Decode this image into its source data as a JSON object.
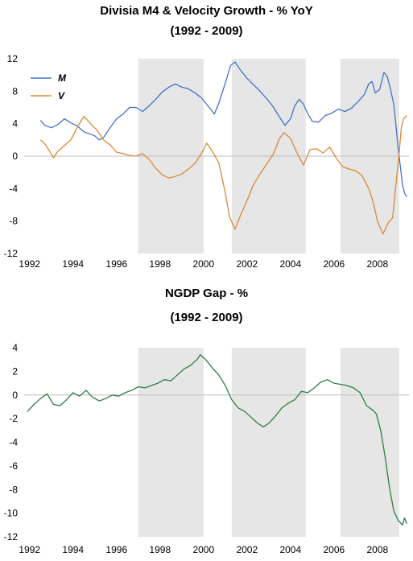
{
  "chart_data": [
    {
      "type": "line",
      "title": "Divisia M4 & Velocity Growth - % YoY",
      "subtitle": "(1992 - 2009)",
      "xlim": [
        1991.75,
        2009.45
      ],
      "ylim": [
        -12,
        12
      ],
      "xticks": [
        1992,
        1994,
        1996,
        1998,
        2000,
        2002,
        2004,
        2006,
        2008
      ],
      "yticks": [
        12,
        8,
        4,
        0,
        -4,
        -8,
        -12
      ],
      "legend": "top-left",
      "shaded_periods": [
        [
          1997.0,
          2000.0
        ],
        [
          2001.3,
          2004.7
        ],
        [
          2006.3,
          2009.0
        ]
      ],
      "shade_color": "#e6e6e6",
      "zero_line_color": "#bfbfbf",
      "series": [
        {
          "name": "M",
          "color": "#4472c4",
          "points": [
            [
              1992.5,
              4.4
            ],
            [
              1992.7,
              3.8
            ],
            [
              1993.0,
              3.5
            ],
            [
              1993.3,
              3.9
            ],
            [
              1993.6,
              4.6
            ],
            [
              1993.9,
              4.1
            ],
            [
              1994.2,
              3.7
            ],
            [
              1994.5,
              3.0
            ],
            [
              1994.8,
              2.7
            ],
            [
              1995.0,
              2.5
            ],
            [
              1995.2,
              2.0
            ],
            [
              1995.4,
              2.3
            ],
            [
              1995.7,
              3.5
            ],
            [
              1996.0,
              4.6
            ],
            [
              1996.3,
              5.2
            ],
            [
              1996.6,
              6.0
            ],
            [
              1996.9,
              6.0
            ],
            [
              1997.2,
              5.5
            ],
            [
              1997.5,
              6.2
            ],
            [
              1997.8,
              7.0
            ],
            [
              1998.1,
              7.9
            ],
            [
              1998.4,
              8.5
            ],
            [
              1998.7,
              8.9
            ],
            [
              1999.0,
              8.5
            ],
            [
              1999.3,
              8.3
            ],
            [
              1999.6,
              7.8
            ],
            [
              1999.9,
              7.2
            ],
            [
              2000.2,
              6.2
            ],
            [
              2000.5,
              5.2
            ],
            [
              2000.7,
              6.5
            ],
            [
              2001.0,
              9.0
            ],
            [
              2001.25,
              11.2
            ],
            [
              2001.45,
              11.6
            ],
            [
              2001.7,
              10.6
            ],
            [
              2002.0,
              9.6
            ],
            [
              2002.3,
              8.8
            ],
            [
              2002.6,
              8.0
            ],
            [
              2002.9,
              7.1
            ],
            [
              2003.2,
              6.1
            ],
            [
              2003.5,
              4.8
            ],
            [
              2003.75,
              3.8
            ],
            [
              2004.0,
              4.6
            ],
            [
              2004.2,
              6.2
            ],
            [
              2004.4,
              7.0
            ],
            [
              2004.6,
              6.4
            ],
            [
              2004.8,
              5.2
            ],
            [
              2005.0,
              4.3
            ],
            [
              2005.3,
              4.2
            ],
            [
              2005.6,
              5.0
            ],
            [
              2005.9,
              5.3
            ],
            [
              2006.2,
              5.8
            ],
            [
              2006.5,
              5.5
            ],
            [
              2006.8,
              5.9
            ],
            [
              2007.1,
              6.7
            ],
            [
              2007.4,
              7.6
            ],
            [
              2007.6,
              8.9
            ],
            [
              2007.75,
              9.2
            ],
            [
              2007.9,
              7.8
            ],
            [
              2008.1,
              8.2
            ],
            [
              2008.3,
              10.3
            ],
            [
              2008.45,
              9.8
            ],
            [
              2008.6,
              8.3
            ],
            [
              2008.75,
              6.4
            ],
            [
              2008.85,
              3.8
            ],
            [
              2008.95,
              1.0
            ],
            [
              2009.05,
              -1.2
            ],
            [
              2009.15,
              -3.5
            ],
            [
              2009.25,
              -4.6
            ],
            [
              2009.35,
              -5.0
            ]
          ]
        },
        {
          "name": "V",
          "color": "#d98a3a",
          "points": [
            [
              1992.5,
              2.0
            ],
            [
              1992.7,
              1.5
            ],
            [
              1992.9,
              0.7
            ],
            [
              1993.1,
              -0.2
            ],
            [
              1993.3,
              0.6
            ],
            [
              1993.6,
              1.3
            ],
            [
              1993.9,
              2.0
            ],
            [
              1994.2,
              3.6
            ],
            [
              1994.5,
              4.9
            ],
            [
              1994.8,
              4.0
            ],
            [
              1995.1,
              3.2
            ],
            [
              1995.4,
              2.0
            ],
            [
              1995.7,
              1.4
            ],
            [
              1996.0,
              0.5
            ],
            [
              1996.3,
              0.3
            ],
            [
              1996.6,
              0.1
            ],
            [
              1996.9,
              0.0
            ],
            [
              1997.2,
              0.3
            ],
            [
              1997.5,
              -0.4
            ],
            [
              1997.8,
              -1.5
            ],
            [
              1998.1,
              -2.3
            ],
            [
              1998.4,
              -2.7
            ],
            [
              1998.7,
              -2.5
            ],
            [
              1999.0,
              -2.2
            ],
            [
              1999.3,
              -1.6
            ],
            [
              1999.6,
              -0.9
            ],
            [
              1999.9,
              0.3
            ],
            [
              2000.15,
              1.6
            ],
            [
              2000.4,
              0.6
            ],
            [
              2000.7,
              -0.8
            ],
            [
              2001.0,
              -4.5
            ],
            [
              2001.2,
              -7.5
            ],
            [
              2001.45,
              -9.0
            ],
            [
              2001.7,
              -7.3
            ],
            [
              2002.0,
              -5.5
            ],
            [
              2002.3,
              -3.5
            ],
            [
              2002.6,
              -2.2
            ],
            [
              2002.9,
              -1.0
            ],
            [
              2003.2,
              0.2
            ],
            [
              2003.5,
              2.2
            ],
            [
              2003.7,
              2.9
            ],
            [
              2004.0,
              2.2
            ],
            [
              2004.3,
              0.4
            ],
            [
              2004.6,
              -1.1
            ],
            [
              2004.9,
              0.8
            ],
            [
              2005.2,
              0.9
            ],
            [
              2005.5,
              0.4
            ],
            [
              2005.8,
              1.1
            ],
            [
              2006.1,
              -0.2
            ],
            [
              2006.4,
              -1.3
            ],
            [
              2006.7,
              -1.6
            ],
            [
              2007.0,
              -1.8
            ],
            [
              2007.3,
              -2.4
            ],
            [
              2007.6,
              -4.0
            ],
            [
              2007.8,
              -5.6
            ],
            [
              2008.0,
              -8.0
            ],
            [
              2008.25,
              -9.6
            ],
            [
              2008.5,
              -8.2
            ],
            [
              2008.7,
              -7.6
            ],
            [
              2008.85,
              -3.5
            ],
            [
              2009.0,
              0.4
            ],
            [
              2009.1,
              3.5
            ],
            [
              2009.2,
              4.6
            ],
            [
              2009.35,
              5.0
            ]
          ]
        }
      ]
    },
    {
      "type": "line",
      "title": "NGDP Gap - %",
      "subtitle": "(1992 - 2009)",
      "xlim": [
        1991.75,
        2009.45
      ],
      "ylim": [
        -12,
        4
      ],
      "xticks": [
        1992,
        1994,
        1996,
        1998,
        2000,
        2002,
        2004,
        2006,
        2008
      ],
      "yticks": [
        4,
        2,
        0,
        -2,
        -4,
        -6,
        -8,
        -10,
        -12
      ],
      "legend": "none",
      "shaded_periods": [
        [
          1997.0,
          2000.0
        ],
        [
          2001.3,
          2004.7
        ],
        [
          2006.3,
          2009.0
        ]
      ],
      "shade_color": "#e6e6e6",
      "zero_line_color": "#bfbfbf",
      "series": [
        {
          "color": "#2e7d45",
          "points": [
            [
              1991.9,
              -1.4
            ],
            [
              1992.2,
              -0.8
            ],
            [
              1992.5,
              -0.3
            ],
            [
              1992.8,
              0.1
            ],
            [
              1993.1,
              -0.8
            ],
            [
              1993.4,
              -0.9
            ],
            [
              1993.7,
              -0.4
            ],
            [
              1994.0,
              0.2
            ],
            [
              1994.3,
              -0.1
            ],
            [
              1994.6,
              0.4
            ],
            [
              1994.9,
              -0.2
            ],
            [
              1995.2,
              -0.5
            ],
            [
              1995.5,
              -0.3
            ],
            [
              1995.8,
              0.0
            ],
            [
              1996.1,
              -0.1
            ],
            [
              1996.4,
              0.2
            ],
            [
              1996.7,
              0.4
            ],
            [
              1997.0,
              0.7
            ],
            [
              1997.3,
              0.6
            ],
            [
              1997.6,
              0.8
            ],
            [
              1997.9,
              1.0
            ],
            [
              1998.2,
              1.3
            ],
            [
              1998.5,
              1.2
            ],
            [
              1998.8,
              1.7
            ],
            [
              1999.1,
              2.2
            ],
            [
              1999.4,
              2.5
            ],
            [
              1999.7,
              3.0
            ],
            [
              1999.85,
              3.4
            ],
            [
              2000.1,
              3.0
            ],
            [
              2000.4,
              2.3
            ],
            [
              2000.7,
              1.7
            ],
            [
              2001.0,
              0.8
            ],
            [
              2001.3,
              -0.4
            ],
            [
              2001.6,
              -1.1
            ],
            [
              2001.9,
              -1.4
            ],
            [
              2002.2,
              -1.9
            ],
            [
              2002.5,
              -2.4
            ],
            [
              2002.75,
              -2.7
            ],
            [
              2003.0,
              -2.4
            ],
            [
              2003.3,
              -1.8
            ],
            [
              2003.6,
              -1.1
            ],
            [
              2003.9,
              -0.7
            ],
            [
              2004.2,
              -0.4
            ],
            [
              2004.5,
              0.3
            ],
            [
              2004.8,
              0.2
            ],
            [
              2005.1,
              0.6
            ],
            [
              2005.4,
              1.1
            ],
            [
              2005.7,
              1.3
            ],
            [
              2006.0,
              1.0
            ],
            [
              2006.3,
              0.9
            ],
            [
              2006.6,
              0.8
            ],
            [
              2006.9,
              0.6
            ],
            [
              2007.2,
              0.2
            ],
            [
              2007.5,
              -0.9
            ],
            [
              2007.8,
              -1.3
            ],
            [
              2007.95,
              -1.6
            ],
            [
              2008.15,
              -3.0
            ],
            [
              2008.35,
              -5.2
            ],
            [
              2008.55,
              -7.8
            ],
            [
              2008.75,
              -9.8
            ],
            [
              2008.95,
              -10.6
            ],
            [
              2009.15,
              -11.0
            ],
            [
              2009.25,
              -10.4
            ],
            [
              2009.35,
              -10.9
            ]
          ]
        }
      ]
    }
  ]
}
